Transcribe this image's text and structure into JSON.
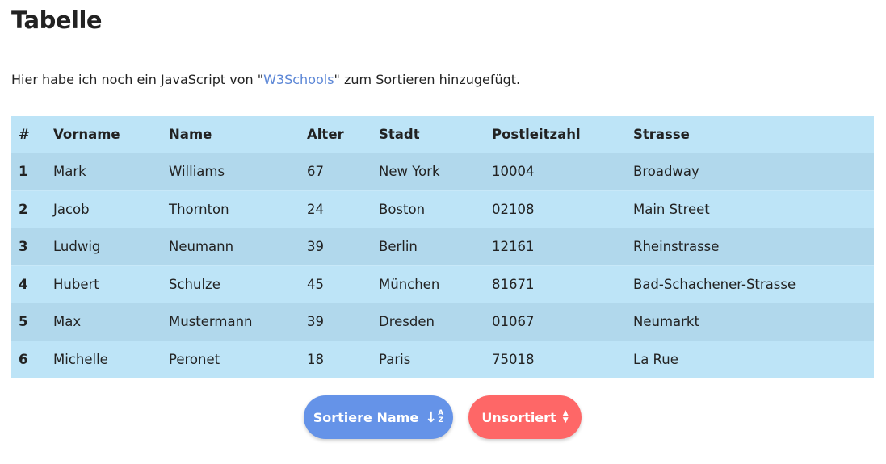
{
  "title": "Tabelle",
  "intro": {
    "before": "Hier habe ich noch ein JavaScript von \"",
    "link": "W3Schools",
    "after": "\" zum Sortieren hinzugefügt."
  },
  "table": {
    "headers": [
      "#",
      "Vorname",
      "Name",
      "Alter",
      "Stadt",
      "Postleitzahl",
      "Strasse"
    ],
    "rows": [
      [
        "1",
        "Mark",
        "Williams",
        "67",
        "New York",
        "10004",
        "Broadway"
      ],
      [
        "2",
        "Jacob",
        "Thornton",
        "24",
        "Boston",
        "02108",
        "Main Street"
      ],
      [
        "3",
        "Ludwig",
        "Neumann",
        "39",
        "Berlin",
        "12161",
        "Rheinstrasse"
      ],
      [
        "4",
        "Hubert",
        "Schulze",
        "45",
        "München",
        "81671",
        "Bad-Schachener-Strasse"
      ],
      [
        "5",
        "Max",
        "Mustermann",
        "39",
        "Dresden",
        "01067",
        "Neumarkt"
      ],
      [
        "6",
        "Michelle",
        "Peronet",
        "18",
        "Paris",
        "75018",
        "La Rue"
      ]
    ]
  },
  "buttons": {
    "sort_label": "Sortiere Name",
    "sort_icon": "sort-alpha-down-icon",
    "sort_icon_a": "A",
    "sort_icon_z": "Z",
    "unsort_label": "Unsortiert",
    "unsort_icon": "sort-icon"
  },
  "colors": {
    "sort_button": "#6593e8",
    "unsort_button": "#fe6767",
    "table_bg": "#bde4f7",
    "table_stripe": "#b1d8ec",
    "link": "#5b86d6"
  }
}
